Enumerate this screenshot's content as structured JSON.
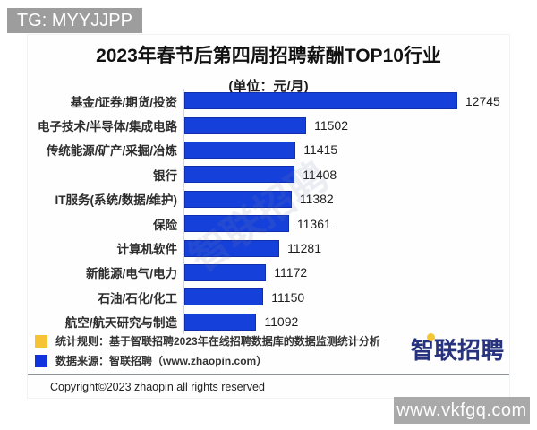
{
  "overlays": {
    "tg_tag": "TG: MYYJJPP",
    "site_watermark": "www.vkfgq.com"
  },
  "chart_data": {
    "type": "bar",
    "orientation": "horizontal",
    "title": "2023年春节后第四周招聘薪酬TOP10行业",
    "subtitle": "(单位：元/月)",
    "categories": [
      "基金/证券/期货/投资",
      "电子技术/半导体/集成电路",
      "传统能源/矿产/采掘/冶炼",
      "银行",
      "IT服务(系统/数据/维护)",
      "保险",
      "计算机软件",
      "新能源/电气/电力",
      "石油/石化/化工",
      "航空/航天研究与制造"
    ],
    "values": [
      12745,
      11502,
      11415,
      11408,
      11382,
      11361,
      11281,
      11172,
      11150,
      11092
    ],
    "xlim": [
      10500,
      12790
    ],
    "bar_color": "#1640da",
    "grid": false,
    "value_labels": true,
    "diagonal_watermark": "智联招聘"
  },
  "legend": {
    "items": [
      {
        "color": "#f6c433",
        "label": "统计规则：基于智联招聘2023年在线招聘数据库的数据监测统计分析"
      },
      {
        "color": "#1133dd",
        "label": "数据来源：智联招聘（www.zhaopin.com）"
      }
    ]
  },
  "logo": {
    "text": "智联招聘",
    "color": "#27337d",
    "dot_color": "#f5c632"
  },
  "footer": {
    "copyright": "Copyright©2023 zhaopin all rights reserved"
  }
}
